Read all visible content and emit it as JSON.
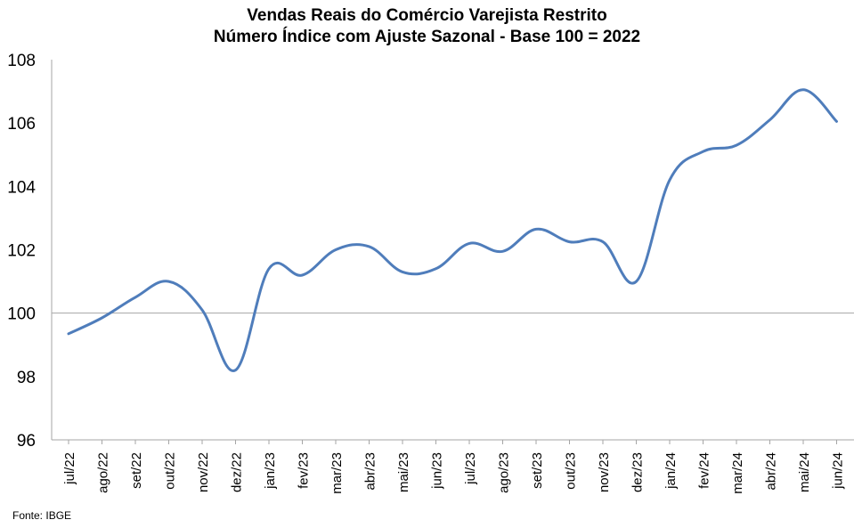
{
  "chart_data": {
    "type": "line",
    "title": "Vendas Reais do Comércio Varejista Restrito",
    "subtitle": "Número Índice com Ajuste Sazonal - Base 100 = 2022",
    "categories": [
      "jul/22",
      "ago/22",
      "set/22",
      "out/22",
      "nov/22",
      "dez/22",
      "jan/23",
      "fev/23",
      "mar/23",
      "abr/23",
      "mai/23",
      "jun/23",
      "jul/23",
      "ago/23",
      "set/23",
      "out/23",
      "nov/23",
      "dez/23",
      "jan/24",
      "fev/24",
      "mar/24",
      "abr/24",
      "mai/24",
      "jun/24"
    ],
    "series": [
      {
        "values": [
          99.35,
          99.85,
          100.5,
          101.0,
          100.1,
          98.2,
          101.4,
          101.2,
          102.0,
          102.1,
          101.3,
          101.4,
          102.2,
          101.95,
          102.65,
          102.25,
          102.25,
          101.0,
          104.2,
          105.1,
          105.3,
          106.1,
          107.05,
          106.05
        ],
        "color": "#4f7dbb"
      }
    ],
    "ylim": [
      96,
      108
    ],
    "yticks": [
      96,
      98,
      100,
      102,
      104,
      106,
      108
    ],
    "ytick_labels": [
      "96",
      "98",
      "100",
      "102",
      "104",
      "106",
      "108"
    ],
    "reference_line": 100,
    "grid": false,
    "legend": "none"
  },
  "footer": {
    "source": "Fonte: IBGE"
  }
}
